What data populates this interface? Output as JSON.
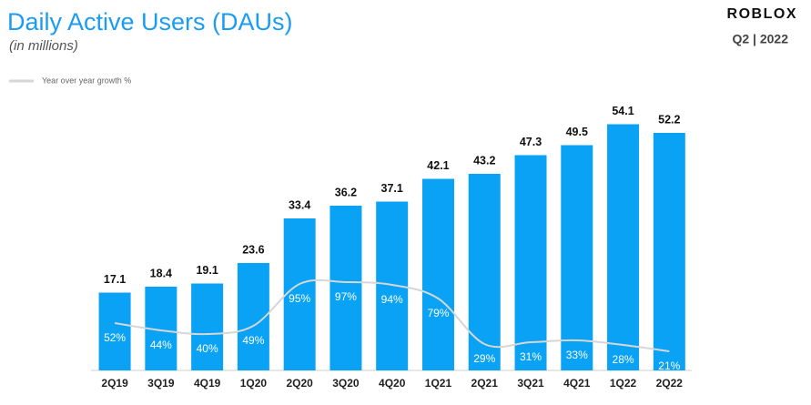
{
  "header": {
    "brand": "ROBLOX",
    "period": "Q2 | 2022"
  },
  "chart_data": {
    "type": "bar",
    "title": "Daily Active Users (DAUs)",
    "subtitle": "(in millions)",
    "categories": [
      "2Q19",
      "3Q19",
      "4Q19",
      "1Q20",
      "2Q20",
      "3Q20",
      "4Q20",
      "1Q21",
      "2Q21",
      "3Q21",
      "4Q21",
      "1Q22",
      "2Q22"
    ],
    "series": [
      {
        "type": "bar",
        "color": "#0aa2f5",
        "values": [
          17.1,
          18.4,
          19.1,
          23.6,
          33.4,
          36.2,
          37.1,
          42.1,
          43.2,
          47.3,
          49.5,
          54.1,
          52.2
        ]
      },
      {
        "type": "line",
        "name": "Year over year growth %",
        "color": "#d6d6d6",
        "axis": "y2",
        "values": [
          52,
          44,
          40,
          49,
          95,
          97,
          94,
          79,
          29,
          31,
          33,
          28,
          21
        ],
        "value_labels": [
          "52%",
          "44%",
          "40%",
          "49%",
          "95%",
          "97%",
          "94%",
          "79%",
          "29%",
          "31%",
          "33%",
          "28%",
          "21%"
        ]
      }
    ],
    "ylim": [
      0,
      60
    ],
    "y2lim": [
      0,
      300
    ],
    "legend": "top-left"
  }
}
